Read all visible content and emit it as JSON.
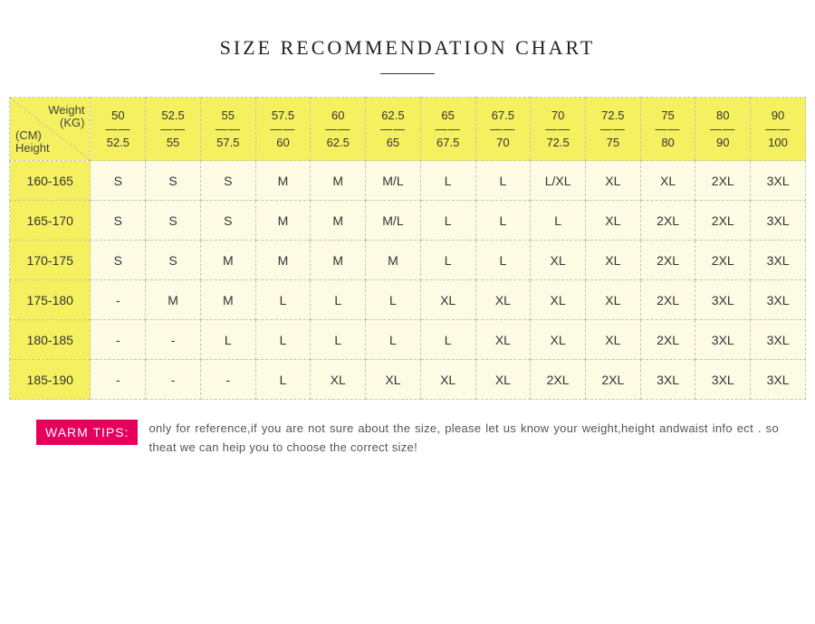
{
  "title": "SIZE RECOMMENDATION CHART",
  "corner": {
    "weight": "Weight",
    "kg": "(KG)",
    "cm": "(CM)",
    "height": "Height"
  },
  "header_bg": "#f5f060",
  "body_bg": "#fdfbe4",
  "border_color": "#c8c8a0",
  "tips_badge_bg": "#e6005c",
  "weight_ranges": [
    {
      "top": "50",
      "bot": "52.5"
    },
    {
      "top": "52.5",
      "bot": "55"
    },
    {
      "top": "55",
      "bot": "57.5"
    },
    {
      "top": "57.5",
      "bot": "60"
    },
    {
      "top": "60",
      "bot": "62.5"
    },
    {
      "top": "62.5",
      "bot": "65"
    },
    {
      "top": "65",
      "bot": "67.5"
    },
    {
      "top": "67.5",
      "bot": "70"
    },
    {
      "top": "70",
      "bot": "72.5"
    },
    {
      "top": "72.5",
      "bot": "75"
    },
    {
      "top": "75",
      "bot": "80"
    },
    {
      "top": "80",
      "bot": "90"
    },
    {
      "top": "90",
      "bot": "100"
    }
  ],
  "rows": [
    {
      "h": "160-165",
      "c": [
        "S",
        "S",
        "S",
        "M",
        "M",
        "M/L",
        "L",
        "L",
        "L/XL",
        "XL",
        "XL",
        "2XL",
        "3XL"
      ]
    },
    {
      "h": "165-170",
      "c": [
        "S",
        "S",
        "S",
        "M",
        "M",
        "M/L",
        "L",
        "L",
        "L",
        "XL",
        "2XL",
        "2XL",
        "3XL"
      ]
    },
    {
      "h": "170-175",
      "c": [
        "S",
        "S",
        "M",
        "M",
        "M",
        "M",
        "L",
        "L",
        "XL",
        "XL",
        "2XL",
        "2XL",
        "3XL"
      ]
    },
    {
      "h": "175-180",
      "c": [
        "-",
        "M",
        "M",
        "L",
        "L",
        "L",
        "XL",
        "XL",
        "XL",
        "XL",
        "2XL",
        "3XL",
        "3XL"
      ]
    },
    {
      "h": "180-185",
      "c": [
        "-",
        "-",
        "L",
        "L",
        "L",
        "L",
        "L",
        "XL",
        "XL",
        "XL",
        "2XL",
        "3XL",
        "3XL"
      ]
    },
    {
      "h": "185-190",
      "c": [
        "-",
        "-",
        "-",
        "L",
        "XL",
        "XL",
        "XL",
        "XL",
        "2XL",
        "2XL",
        "3XL",
        "3XL",
        "3XL"
      ]
    }
  ],
  "tips": {
    "label": "WARM TIPS:",
    "text": "only for reference,if you are not sure about the size, please let us know your weight,height andwaist info ect . so theat we can heip you to choose the correct size!"
  }
}
